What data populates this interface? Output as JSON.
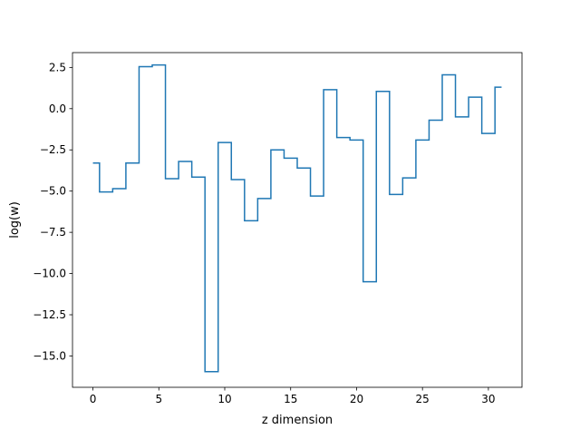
{
  "chart_data": {
    "type": "line",
    "drawstyle": "steps-mid",
    "title": "",
    "xlabel": "z dimension",
    "ylabel": "log(w)",
    "xlim": [
      -1.55,
      32.55
    ],
    "ylim": [
      -16.9,
      3.4
    ],
    "xticks": [
      0,
      5,
      10,
      15,
      20,
      25,
      30
    ],
    "xtick_labels": [
      "0",
      "5",
      "10",
      "15",
      "20",
      "25",
      "30"
    ],
    "yticks": [
      2.5,
      0.0,
      -2.5,
      -5.0,
      -7.5,
      -10.0,
      -12.5,
      -15.0
    ],
    "ytick_labels": [
      "2.5",
      "0.0",
      "−2.5",
      "−5.0",
      "−7.5",
      "−10.0",
      "−12.5",
      "−15.0"
    ],
    "grid": false,
    "legend": null,
    "color": "#1f77b4",
    "series": [
      {
        "x": [
          0,
          1,
          2,
          3,
          4,
          5,
          6,
          7,
          8,
          9,
          10,
          11,
          12,
          13,
          14,
          15,
          16,
          17,
          18,
          19,
          20,
          21,
          22,
          23,
          24,
          25,
          26,
          27,
          28,
          29,
          30,
          31
        ],
        "values": [
          -3.3,
          -5.05,
          -4.85,
          -3.3,
          2.55,
          2.65,
          -4.25,
          -3.2,
          -4.15,
          -15.95,
          -2.05,
          -4.3,
          -6.8,
          -5.45,
          -2.5,
          -3.0,
          -3.6,
          -5.3,
          1.15,
          -1.75,
          -1.9,
          -10.5,
          1.05,
          -5.2,
          -4.2,
          -1.9,
          -0.7,
          2.05,
          -0.5,
          0.7,
          -1.5,
          1.3
        ]
      }
    ]
  }
}
